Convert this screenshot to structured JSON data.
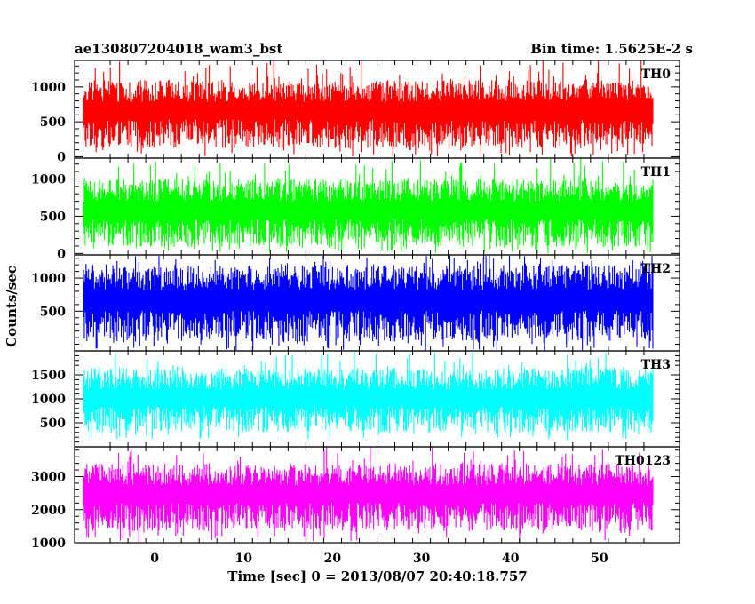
{
  "chart_data": {
    "type": "line",
    "title": "ae130807204018_wam3_bst",
    "bin_time_label": "Bin time: 1.5625E-2 s",
    "xlabel": "Time [sec] 0 = 2013/08/07 20:40:18.757",
    "ylabel": "Counts/sec",
    "xlim": [
      -9,
      59
    ],
    "x_ticks": [
      0,
      10,
      20,
      30,
      40,
      50
    ],
    "x_range_data": [
      -8,
      56
    ],
    "grid": false,
    "panels": [
      {
        "name": "TH0",
        "color": "#ff0000",
        "ylim": [
          -20,
          1380
        ],
        "y_ticks": [
          0,
          500,
          1000
        ],
        "typical_range": [
          120,
          1100
        ],
        "mean": 580,
        "extreme_range": [
          0,
          1380
        ]
      },
      {
        "name": "TH1",
        "color": "#00ff00",
        "ylim": [
          -20,
          1280
        ],
        "y_ticks": [
          0,
          500,
          1000
        ],
        "typical_range": [
          90,
          1000
        ],
        "mean": 500,
        "extreme_range": [
          0,
          1280
        ]
      },
      {
        "name": "TH2",
        "color": "#0000ff",
        "ylim": [
          -100,
          1350
        ],
        "y_ticks": [
          500,
          1000
        ],
        "typical_range": [
          40,
          1200
        ],
        "mean": 560,
        "extreme_range": [
          -100,
          1350
        ]
      },
      {
        "name": "TH3",
        "color": "#00ffff",
        "ylim": [
          0,
          2000
        ],
        "y_ticks": [
          500,
          1000,
          1500
        ],
        "typical_range": [
          300,
          1650
        ],
        "mean": 900,
        "extreme_range": [
          150,
          2000
        ]
      },
      {
        "name": "TH0123",
        "color": "#ff00ff",
        "ylim": [
          1000,
          3900
        ],
        "y_ticks": [
          1000,
          2000,
          3000
        ],
        "typical_range": [
          1350,
          3400
        ],
        "mean": 2300,
        "extreme_range": [
          1000,
          3900
        ]
      }
    ]
  }
}
